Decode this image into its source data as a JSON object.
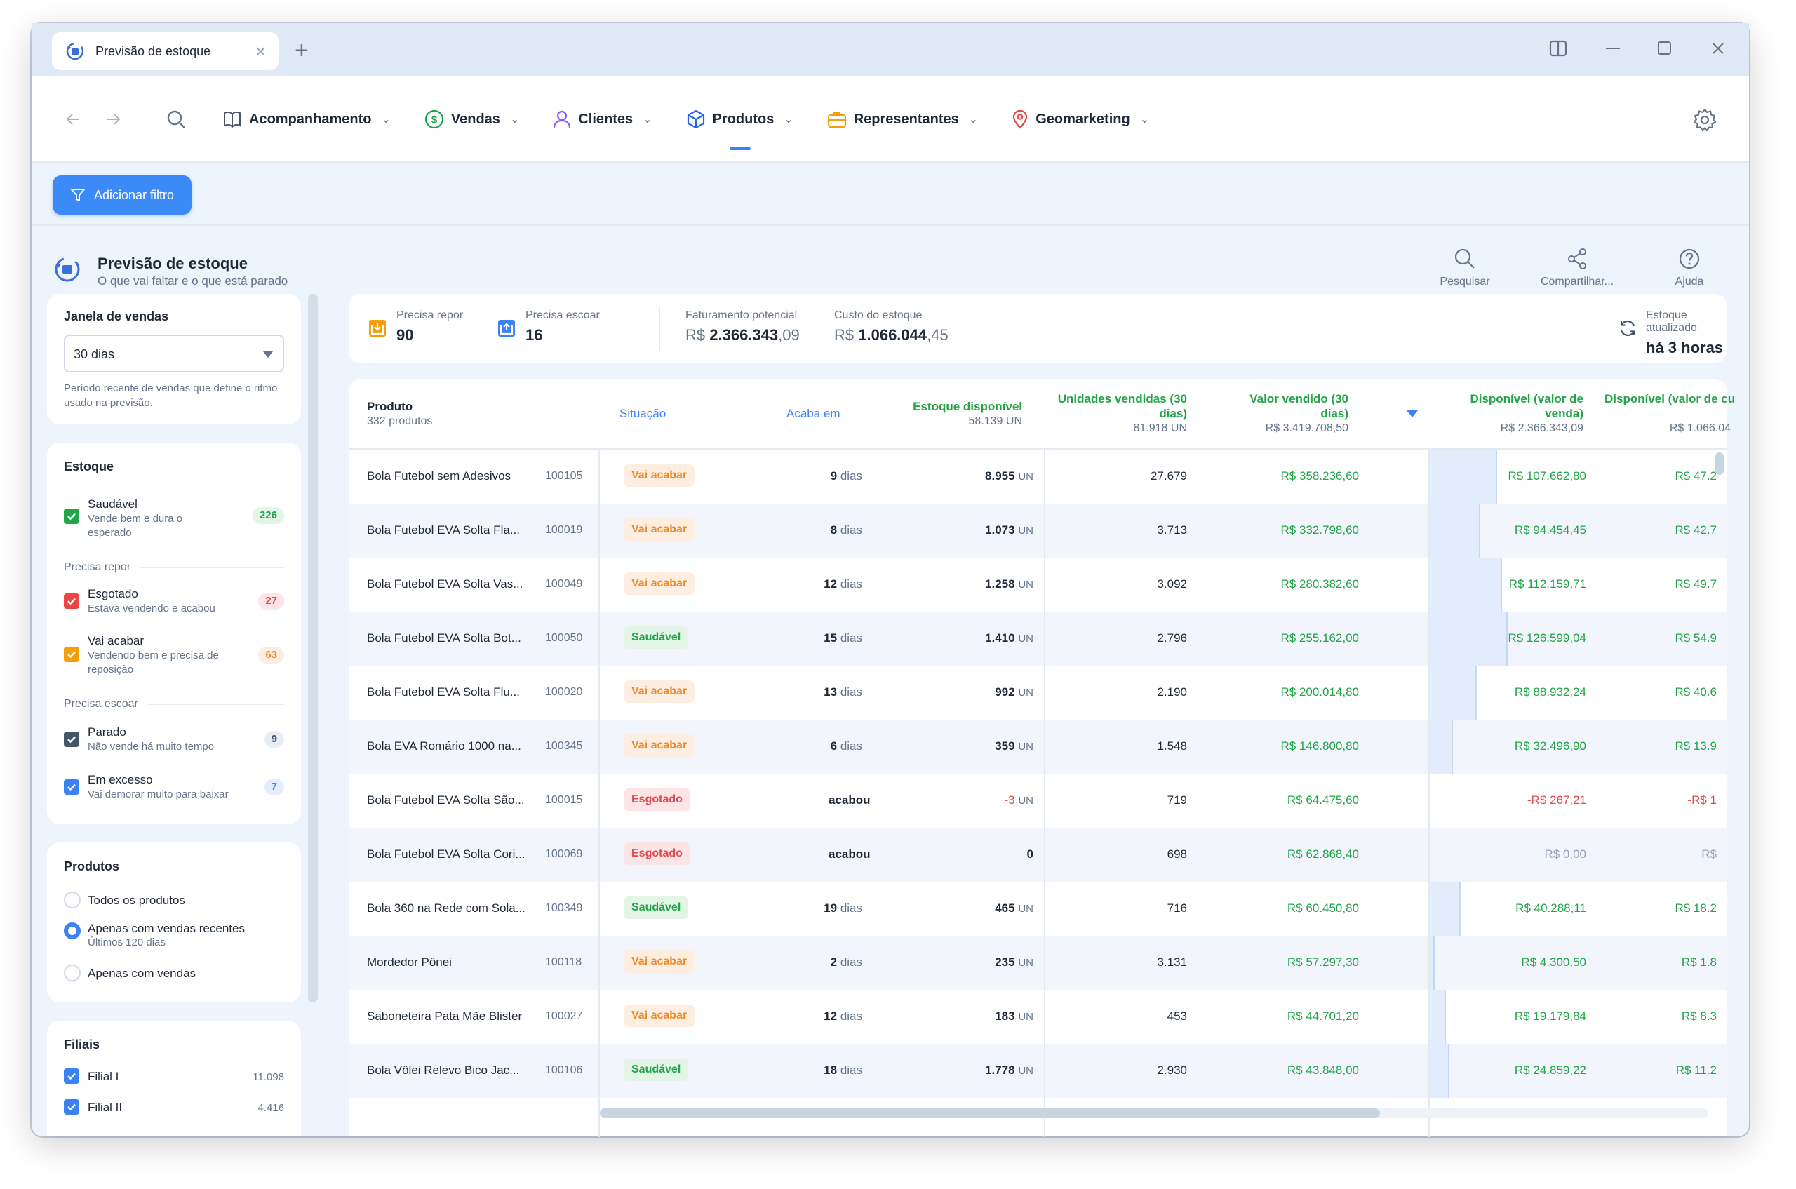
{
  "window": {
    "tab_title": "Previsão de estoque"
  },
  "nav": {
    "items": [
      {
        "label": "Acompanhamento",
        "icon": "book-icon"
      },
      {
        "label": "Vendas",
        "icon": "dollar-icon"
      },
      {
        "label": "Clientes",
        "icon": "user-icon"
      },
      {
        "label": "Produtos",
        "icon": "box-icon",
        "active": true
      },
      {
        "label": "Representantes",
        "icon": "briefcase-icon"
      },
      {
        "label": "Geomarketing",
        "icon": "map-pin-icon"
      }
    ]
  },
  "filter": {
    "add_label": "Adicionar filtro"
  },
  "page": {
    "title": "Previsão de estoque",
    "subtitle": "O que vai faltar e o que está parado"
  },
  "actions": {
    "search": "Pesquisar",
    "share": "Compartilhar...",
    "help": "Ajuda"
  },
  "sidebar": {
    "window": {
      "title": "Janela de vendas",
      "value": "30 dias",
      "hint": "Período recente de vendas que define o ritmo usado na previsão."
    },
    "stock": {
      "title": "Estoque",
      "healthy": {
        "label": "Saudável",
        "desc": "Vende bem e dura o esperado",
        "count": "226"
      },
      "group_restock": "Precisa repor",
      "out": {
        "label": "Esgotado",
        "desc": "Estava vendendo e acabou",
        "count": "27"
      },
      "ending": {
        "label": "Vai acabar",
        "desc": "Vendendo bem e precisa de reposição",
        "count": "63"
      },
      "group_drain": "Precisa escoar",
      "stopped": {
        "label": "Parado",
        "desc": "Não vende há muito tempo",
        "count": "9"
      },
      "excess": {
        "label": "Em excesso",
        "desc": "Vai demorar muito para baixar",
        "count": "7"
      }
    },
    "products": {
      "title": "Produtos",
      "all": "Todos os produtos",
      "recent": "Apenas com vendas recentes",
      "recent_desc": "Últimos 120 dias",
      "with_sales": "Apenas com vendas"
    },
    "branches": {
      "title": "Filiais",
      "items": [
        {
          "label": "Filial I",
          "value": "11.098"
        },
        {
          "label": "Filial II",
          "value": "4.416"
        }
      ]
    }
  },
  "summary": {
    "restock": {
      "label": "Precisa repor",
      "value": "90"
    },
    "drain": {
      "label": "Precisa escoar",
      "value": "16"
    },
    "revenue": {
      "label": "Faturamento potencial",
      "cur": "R$",
      "int": "2.366.343",
      "dec": ",09"
    },
    "cost": {
      "label": "Custo do estoque",
      "cur": "R$",
      "int": "1.066.044",
      "dec": ",45"
    },
    "updated": {
      "label": "Estoque atualizado",
      "value": "há 3 horas"
    }
  },
  "table": {
    "headers": {
      "product": "Produto",
      "product_sub": "332 produtos",
      "status": "Situação",
      "ends": "Acaba em",
      "available": "Estoque disponível",
      "available_sub": "58.139 UN",
      "units": "Unidades vendidas (30 dias)",
      "units_sub": "81.918 UN",
      "sold": "Valor vendido (30 dias)",
      "sold_sub": "R$ 3.419.708,50",
      "avail_sale": "Disponível (valor de venda)",
      "avail_sale_sub": "R$ 2.366.343,09",
      "avail_cost": "Disponível (valor de cu",
      "avail_cost_sub": "R$ 1.066.04"
    },
    "unit": "UN",
    "days": "dias",
    "rows": [
      {
        "name": "Bola Futebol sem Adesivos",
        "code": "100105",
        "status": "Vai acabar",
        "days": "9",
        "stock": "8.955",
        "units": "27.679",
        "sold": "R$ 358.236,60",
        "avail": "R$ 107.662,80",
        "cost": "R$ 47.2",
        "bar": 0.36
      },
      {
        "name": "Bola Futebol EVA Solta Fla...",
        "code": "100019",
        "status": "Vai acabar",
        "days": "8",
        "stock": "1.073",
        "units": "3.713",
        "sold": "R$ 332.798,60",
        "avail": "R$ 94.454,45",
        "cost": "R$ 42.7",
        "bar": 0.27
      },
      {
        "name": "Bola Futebol EVA Solta Vas...",
        "code": "100049",
        "status": "Vai acabar",
        "days": "12",
        "stock": "1.258",
        "units": "3.092",
        "sold": "R$ 280.382,60",
        "avail": "R$ 112.159,71",
        "cost": "R$ 49.7",
        "bar": 0.39
      },
      {
        "name": "Bola Futebol EVA Solta Bot...",
        "code": "100050",
        "status": "Saudável",
        "days": "15",
        "stock": "1.410",
        "units": "2.796",
        "sold": "R$ 255.162,00",
        "avail": "R$ 126.599,04",
        "cost": "R$ 54.9",
        "bar": 0.42
      },
      {
        "name": "Bola Futebol EVA Solta Flu...",
        "code": "100020",
        "status": "Vai acabar",
        "days": "13",
        "stock": "992",
        "units": "2.190",
        "sold": "R$ 200.014,80",
        "avail": "R$ 88.932,24",
        "cost": "R$ 40.6",
        "bar": 0.25
      },
      {
        "name": "Bola EVA Romário 1000 na...",
        "code": "100345",
        "status": "Vai acabar",
        "days": "6",
        "stock": "359",
        "units": "1.548",
        "sold": "R$ 146.800,80",
        "avail": "R$ 32.496,90",
        "cost": "R$ 13.9",
        "bar": 0.12
      },
      {
        "name": "Bola Futebol EVA Solta São...",
        "code": "100015",
        "status": "Esgotado",
        "days": "",
        "ends_text": "acabou",
        "stock": "-3",
        "units": "719",
        "sold": "R$ 64.475,60",
        "avail": "-R$ 267,21",
        "cost": "-R$ 1",
        "bar": 0
      },
      {
        "name": "Bola Futebol EVA Solta Cori...",
        "code": "100069",
        "status": "Esgotado",
        "days": "",
        "ends_text": "acabou",
        "stock": "0",
        "units": "698",
        "sold": "R$ 62.868,40",
        "avail": "R$ 0,00",
        "cost": "R$",
        "bar": 0
      },
      {
        "name": "Bola 360 na Rede com Sola...",
        "code": "100349",
        "status": "Saudável",
        "days": "19",
        "stock": "465",
        "units": "716",
        "sold": "R$ 60.450,80",
        "avail": "R$ 40.288,11",
        "cost": "R$ 18.2",
        "bar": 0.16
      },
      {
        "name": "Mordedor Pônei",
        "code": "100118",
        "status": "Vai acabar",
        "days": "2",
        "stock": "235",
        "units": "3.131",
        "sold": "R$ 57.297,30",
        "avail": "R$ 4.300,50",
        "cost": "R$ 1.8",
        "bar": 0.02
      },
      {
        "name": "Saboneteira Pata Mãe Blister",
        "code": "100027",
        "status": "Vai acabar",
        "days": "12",
        "stock": "183",
        "units": "453",
        "sold": "R$ 44.701,20",
        "avail": "R$ 19.179,84",
        "cost": "R$ 8.3",
        "bar": 0.08
      },
      {
        "name": "Bola Vôlei Relevo Bico Jac...",
        "code": "100106",
        "status": "Saudável",
        "days": "18",
        "stock": "1.778",
        "units": "2.930",
        "sold": "R$ 43.848,00",
        "avail": "R$ 24.859,22",
        "cost": "R$ 11.2",
        "bar": 0.1
      }
    ]
  }
}
